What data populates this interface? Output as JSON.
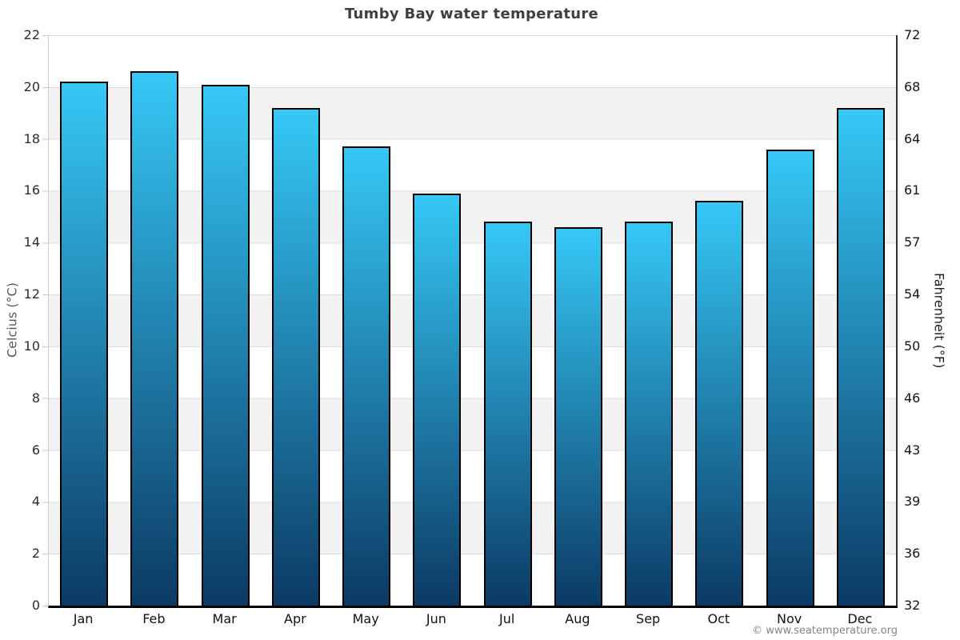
{
  "title": "Tumby Bay water temperature",
  "watermark": "© www.seatemperature.org",
  "left_axis": {
    "title": "Celcius (°C)",
    "ticks": [
      "22",
      "20",
      "18",
      "16",
      "14",
      "12",
      "10",
      "8",
      "6",
      "4",
      "2",
      "0"
    ]
  },
  "right_axis": {
    "title": "Fahrenheit (°F)",
    "ticks": [
      "72",
      "68",
      "64",
      "61",
      "57",
      "54",
      "50",
      "46",
      "43",
      "39",
      "36",
      "32"
    ]
  },
  "chart_data": {
    "type": "bar",
    "title": "Tumby Bay water temperature",
    "categories": [
      "Jan",
      "Feb",
      "Mar",
      "Apr",
      "May",
      "Jun",
      "Jul",
      "Aug",
      "Sep",
      "Oct",
      "Nov",
      "Dec"
    ],
    "values": [
      20.2,
      20.6,
      20.1,
      19.2,
      17.7,
      15.9,
      14.8,
      14.6,
      14.8,
      15.6,
      17.6,
      19.2
    ],
    "xlabel": "",
    "ylabel": "Celcius (°C)",
    "ylabel_right": "Fahrenheit (°F)",
    "ylim": [
      0,
      22
    ],
    "ylim_right": [
      32,
      72
    ],
    "ytick_step_c": 2,
    "grid": "horizontal gridlines every 2°C with alternating white/light-gray bands",
    "legend": "none",
    "colors": {
      "bar_top": "#36c8f6",
      "bar_bottom": "#0b3a64",
      "bar_border": "#000000",
      "band_gray": "#f2f2f2",
      "gridline": "#dedede",
      "left_axis_line": "#cccccc",
      "right_axis_line": "#2e2e2e",
      "baseline": "#000000",
      "title_color": "#3f3f3f"
    }
  }
}
